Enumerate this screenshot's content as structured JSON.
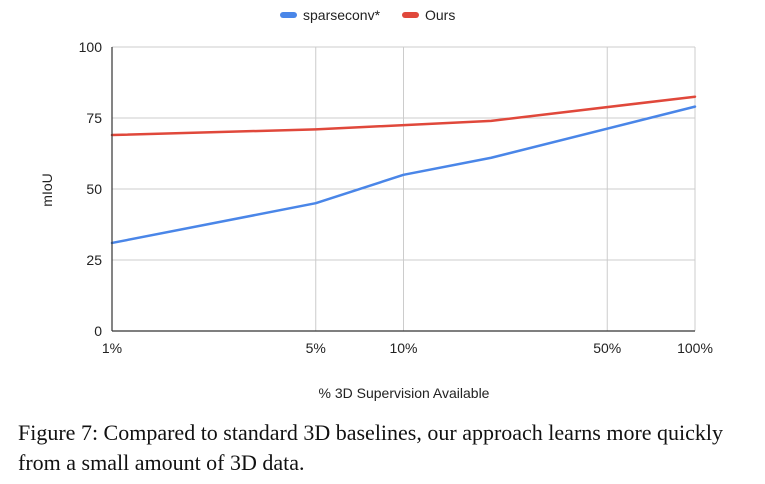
{
  "chart_data": {
    "type": "line",
    "xlabel": "% 3D Supervision Available",
    "ylabel": "mIoU",
    "ylim": [
      0,
      100
    ],
    "yticks": [
      0,
      25,
      50,
      75,
      100
    ],
    "x_scale": "log",
    "xticks": [
      {
        "value": 1,
        "label": "1%"
      },
      {
        "value": 5,
        "label": "5%"
      },
      {
        "value": 10,
        "label": "10%"
      },
      {
        "value": 50,
        "label": "50%"
      },
      {
        "value": 100,
        "label": "100%"
      }
    ],
    "grid": true,
    "legend_position": "top",
    "series": [
      {
        "name": "sparseconv*",
        "color": "#4a86e8",
        "points": [
          {
            "x": 1,
            "y": 31
          },
          {
            "x": 5,
            "y": 45
          },
          {
            "x": 10,
            "y": 55
          },
          {
            "x": 20,
            "y": 61
          },
          {
            "x": 100,
            "y": 79
          }
        ]
      },
      {
        "name": "Ours",
        "color": "#e0483b",
        "points": [
          {
            "x": 1,
            "y": 69
          },
          {
            "x": 5,
            "y": 71
          },
          {
            "x": 20,
            "y": 74
          },
          {
            "x": 100,
            "y": 82.5
          }
        ]
      }
    ]
  },
  "caption": "Figure 7: Compared to standard 3D baselines, our approach learns more quickly from a small amount of 3D data."
}
